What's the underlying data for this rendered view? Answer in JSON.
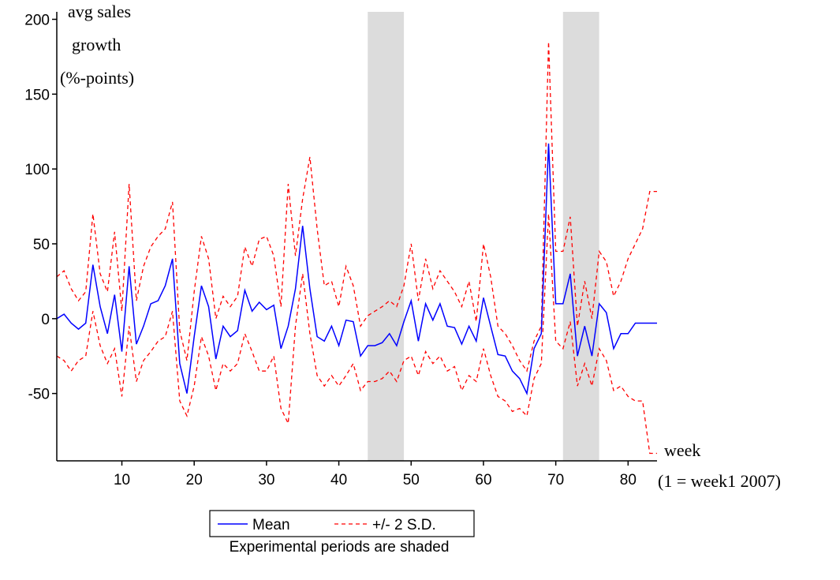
{
  "chart_data": {
    "type": "line",
    "ylabel_lines": [
      "avg sales",
      "growth",
      "(%-points)"
    ],
    "xlabel_lines": [
      "week",
      "(1 = week1 2007)"
    ],
    "xlim": [
      1,
      84
    ],
    "ylim": [
      -95,
      205
    ],
    "xticks": [
      10,
      20,
      30,
      40,
      50,
      60,
      70,
      80
    ],
    "yticks": [
      200,
      150,
      100,
      50,
      0,
      -50
    ],
    "grid": false,
    "legend_position": "bottom",
    "note": "Experimental periods are shaded",
    "shaded_periods": [
      [
        44,
        49
      ],
      [
        71,
        76
      ]
    ],
    "x": [
      1,
      2,
      3,
      4,
      5,
      6,
      7,
      8,
      9,
      10,
      11,
      12,
      13,
      14,
      15,
      16,
      17,
      18,
      19,
      20,
      21,
      22,
      23,
      24,
      25,
      26,
      27,
      28,
      29,
      30,
      31,
      32,
      33,
      34,
      35,
      36,
      37,
      38,
      39,
      40,
      41,
      42,
      43,
      44,
      45,
      46,
      47,
      48,
      49,
      50,
      51,
      52,
      53,
      54,
      55,
      56,
      57,
      58,
      59,
      60,
      61,
      62,
      63,
      64,
      65,
      66,
      67,
      68,
      69,
      70,
      71,
      72,
      73,
      74,
      75,
      76,
      77,
      78,
      79,
      80,
      81,
      82,
      83,
      84
    ],
    "series": [
      {
        "name": "Mean",
        "color": "#0000ff",
        "style": "solid",
        "values": [
          0,
          3,
          -3,
          -7,
          -3,
          36,
          8,
          -10,
          16,
          -22,
          35,
          -17,
          -5,
          10,
          12,
          22,
          40,
          -30,
          -50,
          -12,
          22,
          8,
          -27,
          -5,
          -12,
          -8,
          19,
          5,
          11,
          6,
          9,
          -20,
          -5,
          20,
          62,
          20,
          -12,
          -15,
          -5,
          -18,
          -1,
          -2,
          -25,
          -18,
          -18,
          -16,
          -10,
          -18,
          -2,
          12,
          -15,
          10,
          -1,
          10,
          -5,
          -6,
          -17,
          -5,
          -15,
          14,
          -5,
          -24,
          -25,
          -35,
          -40,
          -50,
          -20,
          -10,
          117,
          10,
          10,
          30,
          -25,
          -5,
          -25,
          10,
          4,
          -20,
          -10,
          -10,
          -3,
          -3,
          -3,
          -3
        ]
      },
      {
        "name": "+/- 2 S.D.",
        "color": "#ff0000",
        "style": "dashed",
        "values_upper": [
          28,
          32,
          20,
          12,
          18,
          70,
          30,
          18,
          58,
          5,
          90,
          12,
          35,
          48,
          55,
          60,
          78,
          -8,
          -28,
          18,
          55,
          40,
          0,
          15,
          8,
          15,
          48,
          35,
          53,
          55,
          42,
          8,
          90,
          42,
          80,
          108,
          60,
          22,
          25,
          8,
          35,
          22,
          -5,
          2,
          5,
          8,
          12,
          8,
          22,
          50,
          12,
          40,
          20,
          32,
          25,
          18,
          8,
          25,
          -2,
          50,
          28,
          -5,
          -10,
          -18,
          -28,
          -35,
          -15,
          -5,
          185,
          45,
          45,
          68,
          -5,
          25,
          0,
          45,
          38,
          15,
          25,
          40,
          50,
          60,
          85,
          85
        ],
        "values_lower": [
          -25,
          -28,
          -35,
          -28,
          -25,
          5,
          -18,
          -30,
          -20,
          -52,
          -5,
          -42,
          -28,
          -22,
          -15,
          -12,
          5,
          -55,
          -65,
          -45,
          -12,
          -25,
          -48,
          -30,
          -35,
          -30,
          -10,
          -22,
          -35,
          -35,
          -25,
          -60,
          -70,
          -5,
          30,
          -10,
          -38,
          -45,
          -38,
          -45,
          -38,
          -30,
          -48,
          -42,
          -42,
          -40,
          -35,
          -42,
          -28,
          -25,
          -38,
          -22,
          -30,
          -25,
          -35,
          -32,
          -48,
          -38,
          -42,
          -20,
          -38,
          -52,
          -55,
          -62,
          -60,
          -65,
          -40,
          -30,
          70,
          -15,
          -20,
          -2,
          -45,
          -30,
          -45,
          -20,
          -28,
          -48,
          -45,
          -52,
          -55,
          -55,
          -90,
          -90
        ]
      }
    ]
  },
  "colors": {
    "shade": "#dcdcdc",
    "mean_line": "#0000ff",
    "band_line": "#ff0000",
    "axis": "#000000"
  }
}
